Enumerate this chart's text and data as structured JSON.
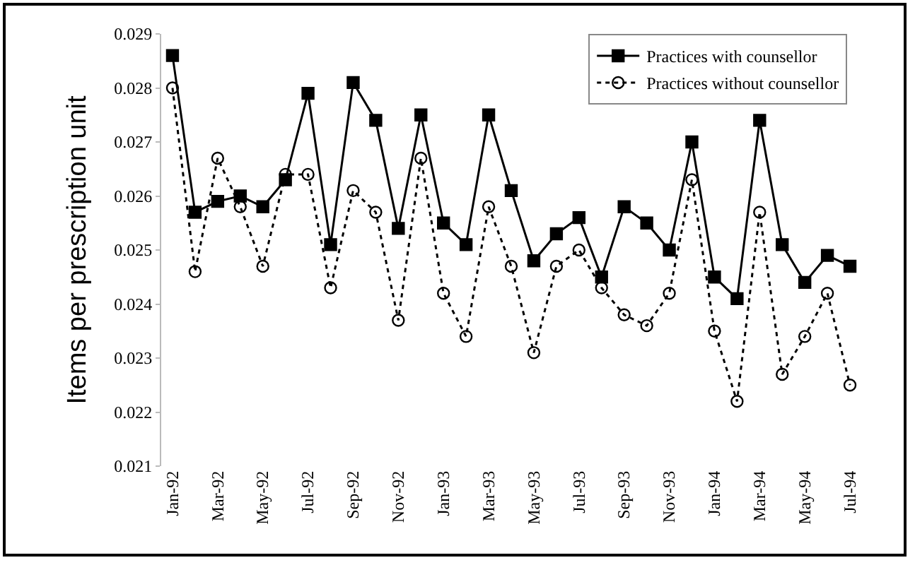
{
  "chart_data": {
    "type": "line",
    "ylabel": "Items per prescription unit",
    "categories": [
      "Jan-92",
      null,
      "Mar-92",
      null,
      "May-92",
      null,
      "Jul-92",
      null,
      "Sep-92",
      null,
      "Nov-92",
      null,
      "Jan-93",
      null,
      "Mar-93",
      null,
      "May-93",
      null,
      "Jul-93",
      null,
      "Sep-93",
      null,
      "Nov-93",
      null,
      "Jan-94",
      null,
      "Mar-94",
      null,
      "May-94",
      null,
      "Jul-94"
    ],
    "series": [
      {
        "name": "Practices with counsellor",
        "color": "#000000",
        "marker": "square",
        "line_style": "solid",
        "values": [
          0.0286,
          0.0257,
          0.0259,
          0.026,
          0.0258,
          0.0263,
          0.0279,
          0.0251,
          0.0281,
          0.0274,
          0.0254,
          0.0275,
          0.0255,
          0.0251,
          0.0275,
          0.0261,
          0.0248,
          0.0253,
          0.0256,
          0.0245,
          0.0258,
          0.0255,
          0.025,
          0.027,
          0.0245,
          0.0241,
          0.0274,
          0.0251,
          0.0244,
          0.0249,
          0.0247
        ]
      },
      {
        "name": "Practices without counsellor",
        "color": "#000000",
        "marker": "circle",
        "line_style": "dotted",
        "values": [
          0.028,
          0.0246,
          0.0267,
          0.0258,
          0.0247,
          0.0264,
          0.0264,
          0.0243,
          0.0261,
          0.0257,
          0.0237,
          0.0267,
          0.0242,
          0.0234,
          0.0258,
          0.0247,
          0.0231,
          0.0247,
          0.025,
          0.0243,
          0.0238,
          0.0236,
          0.0242,
          0.0263,
          0.0235,
          0.0222,
          0.0257,
          0.0227,
          0.0234,
          0.0242,
          0.0225
        ]
      }
    ],
    "ylim": [
      0.021,
      0.029
    ],
    "yticks": [
      0.021,
      0.022,
      0.023,
      0.024,
      0.025,
      0.026,
      0.027,
      0.028,
      0.029
    ],
    "grid": false,
    "legend": "top right"
  }
}
